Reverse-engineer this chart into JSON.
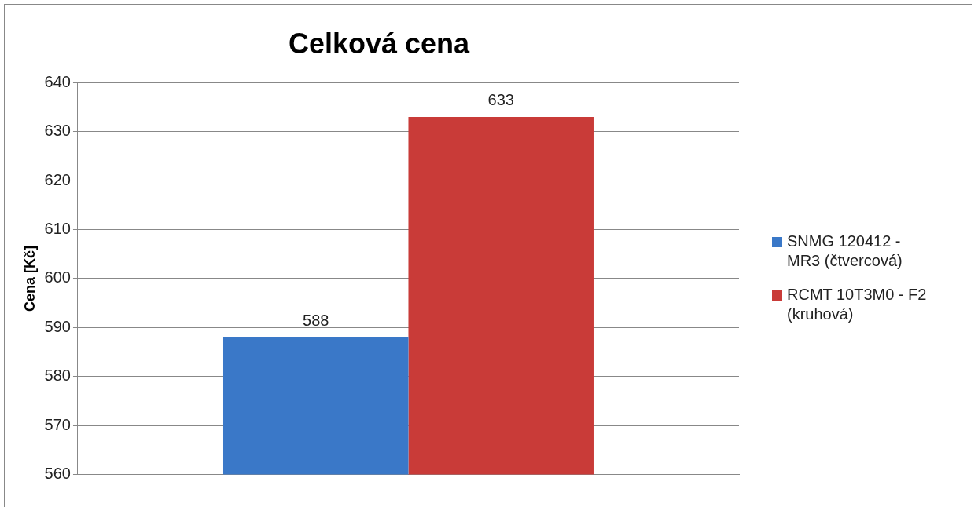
{
  "chart_data": {
    "type": "bar",
    "title": "Celková cena",
    "ylabel": "Cena [Kč]",
    "categories": [
      null
    ],
    "series": [
      {
        "name": "SNMG 120412 - MR3 (čtvercová)",
        "color": "#3a78c8",
        "values": [
          588
        ]
      },
      {
        "name": "RCMT 10T3M0 - F2 (kruhová)",
        "color": "#c93b38",
        "values": [
          633
        ]
      }
    ],
    "ylim": [
      560,
      640
    ],
    "yticks": [
      560,
      570,
      580,
      590,
      600,
      610,
      620,
      630,
      640
    ],
    "grid": "y",
    "legend": "right",
    "data_labels": true
  }
}
